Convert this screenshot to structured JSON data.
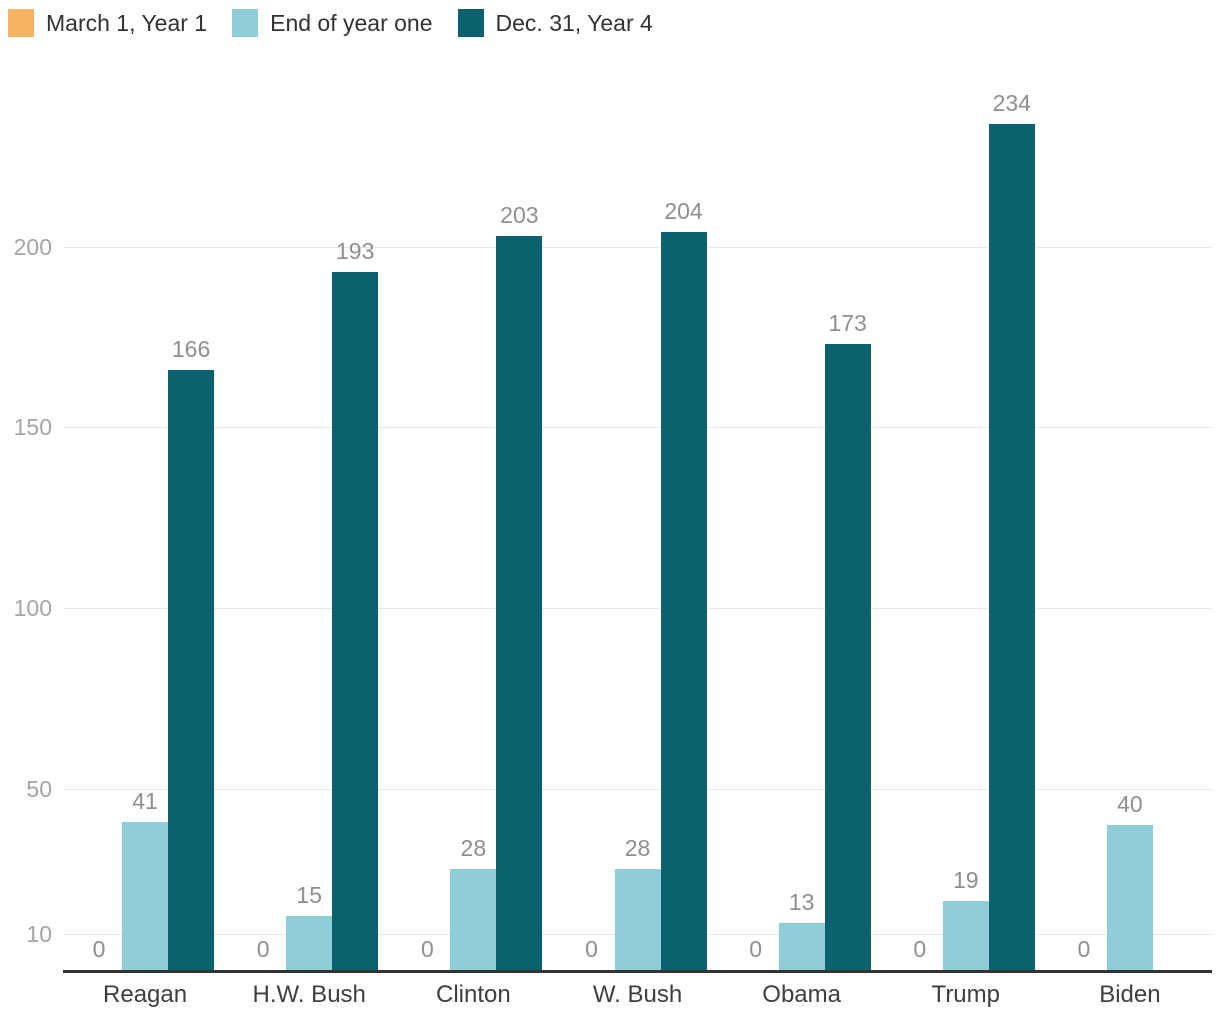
{
  "chart_data": {
    "type": "bar",
    "title": "",
    "categories": [
      "Reagan",
      "H.W. Bush",
      "Clinton",
      "W. Bush",
      "Obama",
      "Trump",
      "Biden"
    ],
    "series": [
      {
        "name": "March 1, Year 1",
        "color": "#f8b264",
        "values": [
          0,
          0,
          0,
          0,
          0,
          0,
          0
        ]
      },
      {
        "name": "End of year one",
        "color": "#8fced7",
        "values": [
          41,
          15,
          28,
          28,
          13,
          19,
          40
        ]
      },
      {
        "name": "Dec. 31, Year 4",
        "color": "#0c616e",
        "values": [
          166,
          193,
          203,
          204,
          173,
          234,
          null
        ]
      }
    ],
    "xlabel": "",
    "ylabel": "",
    "yticks": [
      10,
      50,
      100,
      150,
      200
    ],
    "ylim": [
      0,
      250
    ],
    "grid": true,
    "legend_position": "top-left",
    "value_labels": true,
    "colors": {
      "background": "#ffffff",
      "gridline": "#e7e7e7",
      "axis_line": "#333333",
      "tick_label": "#a5a5a5",
      "value_label": "#8f8f8f",
      "category_label": "#3f3f3f",
      "legend_text": "#333333"
    }
  }
}
